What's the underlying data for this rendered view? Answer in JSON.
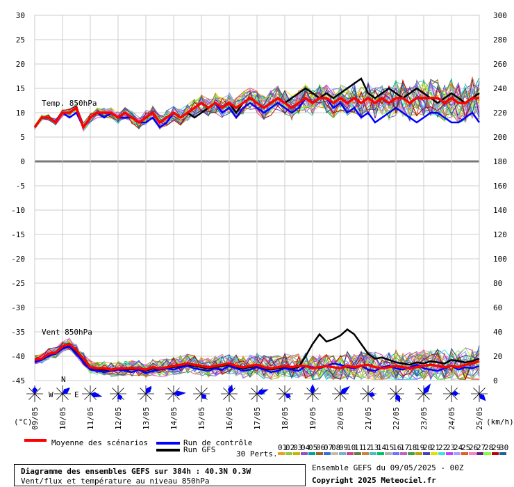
{
  "chart_data": {
    "type": "line",
    "x_dates": [
      "09/05",
      "10/05",
      "11/05",
      "12/05",
      "13/05",
      "14/05",
      "15/05",
      "16/05",
      "17/05",
      "18/05",
      "19/05",
      "20/05",
      "21/05",
      "22/05",
      "23/05",
      "24/05",
      "25/05"
    ],
    "left_axis": {
      "unit_label": "(°C)",
      "ticks": [
        30,
        25,
        20,
        15,
        10,
        5,
        0,
        -5,
        -10,
        -15,
        -20,
        -25,
        -30,
        -35,
        -40,
        -45
      ],
      "range": [
        -45,
        30
      ]
    },
    "right_axis": {
      "unit_label": "(km/h)",
      "ticks": [
        300,
        280,
        260,
        240,
        220,
        200,
        180,
        160,
        140,
        120,
        100,
        80,
        60,
        40,
        20,
        0
      ],
      "range": [
        0,
        300
      ]
    },
    "temperature_panel": {
      "label": "Temp. 850hPa",
      "mean_series": {
        "name": "Moyenne des scénarios",
        "values": [
          7,
          9,
          9,
          8,
          10,
          10,
          11,
          7,
          9,
          10,
          10,
          10,
          9,
          10,
          9,
          8,
          9,
          10,
          8,
          9,
          10,
          9,
          10,
          11,
          12,
          11,
          12,
          11,
          12,
          11,
          12,
          13,
          12,
          11,
          12,
          13,
          12,
          11,
          12,
          13,
          12,
          13,
          13,
          12,
          13,
          12,
          13,
          12,
          13,
          12,
          13,
          12,
          13,
          13,
          12,
          13,
          13,
          13,
          13,
          12,
          13,
          12,
          12,
          13,
          13
        ]
      },
      "control_series": {
        "name": "Run de contrôle",
        "values": [
          7,
          9,
          9,
          8,
          10,
          9,
          10,
          7,
          9,
          10,
          9,
          10,
          9,
          9,
          9,
          8,
          8,
          9,
          7,
          8,
          10,
          9,
          10,
          11,
          12,
          11,
          12,
          10,
          11,
          9,
          11,
          12,
          11,
          10,
          11,
          12,
          11,
          10,
          11,
          13,
          12,
          13,
          13,
          11,
          12,
          10,
          11,
          9,
          10,
          8,
          9,
          10,
          11,
          10,
          9,
          8,
          9,
          10,
          10,
          9,
          8,
          8,
          9,
          10,
          8
        ]
      },
      "gfs_series": {
        "name": "Run GFS",
        "values": [
          7,
          9,
          9,
          8,
          10,
          10,
          11,
          7,
          9,
          10,
          10,
          10,
          9,
          10,
          9,
          8,
          9,
          10,
          8,
          9,
          10,
          9,
          10,
          9,
          10,
          11,
          12,
          11,
          12,
          10,
          12,
          13,
          12,
          11,
          12,
          13,
          12,
          13,
          14,
          15,
          14,
          13,
          14,
          13,
          14,
          15,
          16,
          17,
          14,
          13,
          14,
          15,
          14,
          13,
          14,
          15,
          14,
          13,
          12,
          13,
          14,
          13,
          12,
          13,
          14
        ]
      }
    },
    "wind_panel": {
      "label": "Vent 850hPa",
      "mean_series": {
        "name": "Moyenne des scénarios",
        "values": [
          17,
          18,
          22,
          23,
          28,
          30,
          25,
          18,
          11,
          10,
          10,
          9,
          10,
          10,
          10,
          10,
          9,
          11,
          10,
          11,
          12,
          13,
          14,
          13,
          12,
          11,
          12,
          13,
          14,
          12,
          11,
          12,
          13,
          11,
          10,
          11,
          12,
          11,
          12,
          12,
          10,
          11,
          12,
          11,
          10,
          12,
          11,
          12,
          13,
          11,
          10,
          11,
          12,
          11,
          10,
          11,
          12,
          13,
          12,
          11,
          12,
          11,
          13,
          14,
          16
        ]
      },
      "control_series": {
        "name": "Run de contrôle",
        "values": [
          15,
          17,
          20,
          22,
          26,
          28,
          22,
          15,
          9,
          8,
          7,
          8,
          9,
          8,
          7,
          9,
          6,
          8,
          9,
          10,
          9,
          11,
          12,
          10,
          9,
          8,
          10,
          9,
          12,
          10,
          8,
          9,
          11,
          9,
          7,
          8,
          10,
          9,
          8,
          12,
          11,
          10,
          12,
          14,
          13,
          11,
          10,
          12,
          9,
          8,
          11,
          12,
          10,
          9,
          11,
          13,
          10,
          9,
          8,
          10,
          12,
          9,
          11,
          10,
          12
        ]
      },
      "gfs_series": {
        "name": "Run GFS",
        "values": [
          16,
          17,
          21,
          22,
          27,
          29,
          24,
          17,
          10,
          9,
          9,
          8,
          9,
          9,
          9,
          10,
          8,
          10,
          9,
          10,
          11,
          12,
          13,
          12,
          11,
          10,
          11,
          12,
          13,
          11,
          10,
          11,
          12,
          10,
          9,
          10,
          11,
          10,
          11,
          20,
          30,
          38,
          32,
          34,
          37,
          42,
          38,
          30,
          22,
          18,
          19,
          17,
          15,
          14,
          13,
          15,
          14,
          16,
          15,
          14,
          17,
          16,
          15,
          16,
          18
        ]
      }
    }
  },
  "legend": {
    "mean": "Moyenne des scénarios",
    "control": "Run de contrôle",
    "gfs": "Run GFS",
    "perts": "30 Perts.",
    "pert_numbers": [
      "01",
      "02",
      "03",
      "04",
      "05",
      "06",
      "07",
      "08",
      "09",
      "10",
      "11",
      "12",
      "13",
      "14",
      "15",
      "16",
      "17",
      "18",
      "19",
      "20",
      "21",
      "22",
      "23",
      "24",
      "25",
      "26",
      "27",
      "28",
      "29",
      "30"
    ],
    "colors": {
      "mean": "#ff0000",
      "control": "#0000ff",
      "gfs": "#000000"
    },
    "pert_colors": [
      "#e8a020",
      "#90c840",
      "#c8b400",
      "#9050c0",
      "#00a0a0",
      "#a06020",
      "#3070e0",
      "#c0c0a0",
      "#70b0d0",
      "#d04090",
      "#608040",
      "#d08030",
      "#40c0c0",
      "#00c060",
      "#b0b0b0",
      "#7070ff",
      "#c060c0",
      "#40a040",
      "#c0a000",
      "#4040c0",
      "#e0e000",
      "#40e0e0",
      "#c040ff",
      "#a0a0ff",
      "#e06020",
      "#ff80c0",
      "#602080",
      "#80ff40",
      "#c00000",
      "#2060a0"
    ]
  },
  "info": {
    "title": "Diagramme des ensembles GEFS sur 384h : 40.3N 0.3W",
    "subtitle": "Vent/flux et température au niveau 850hPa",
    "run": "Ensemble GEFS du 09/05/2025 - 00Z",
    "copyright": "Copyright 2025 Meteociel.fr"
  },
  "compass": {
    "n": "N",
    "w": "W",
    "e": "E"
  }
}
